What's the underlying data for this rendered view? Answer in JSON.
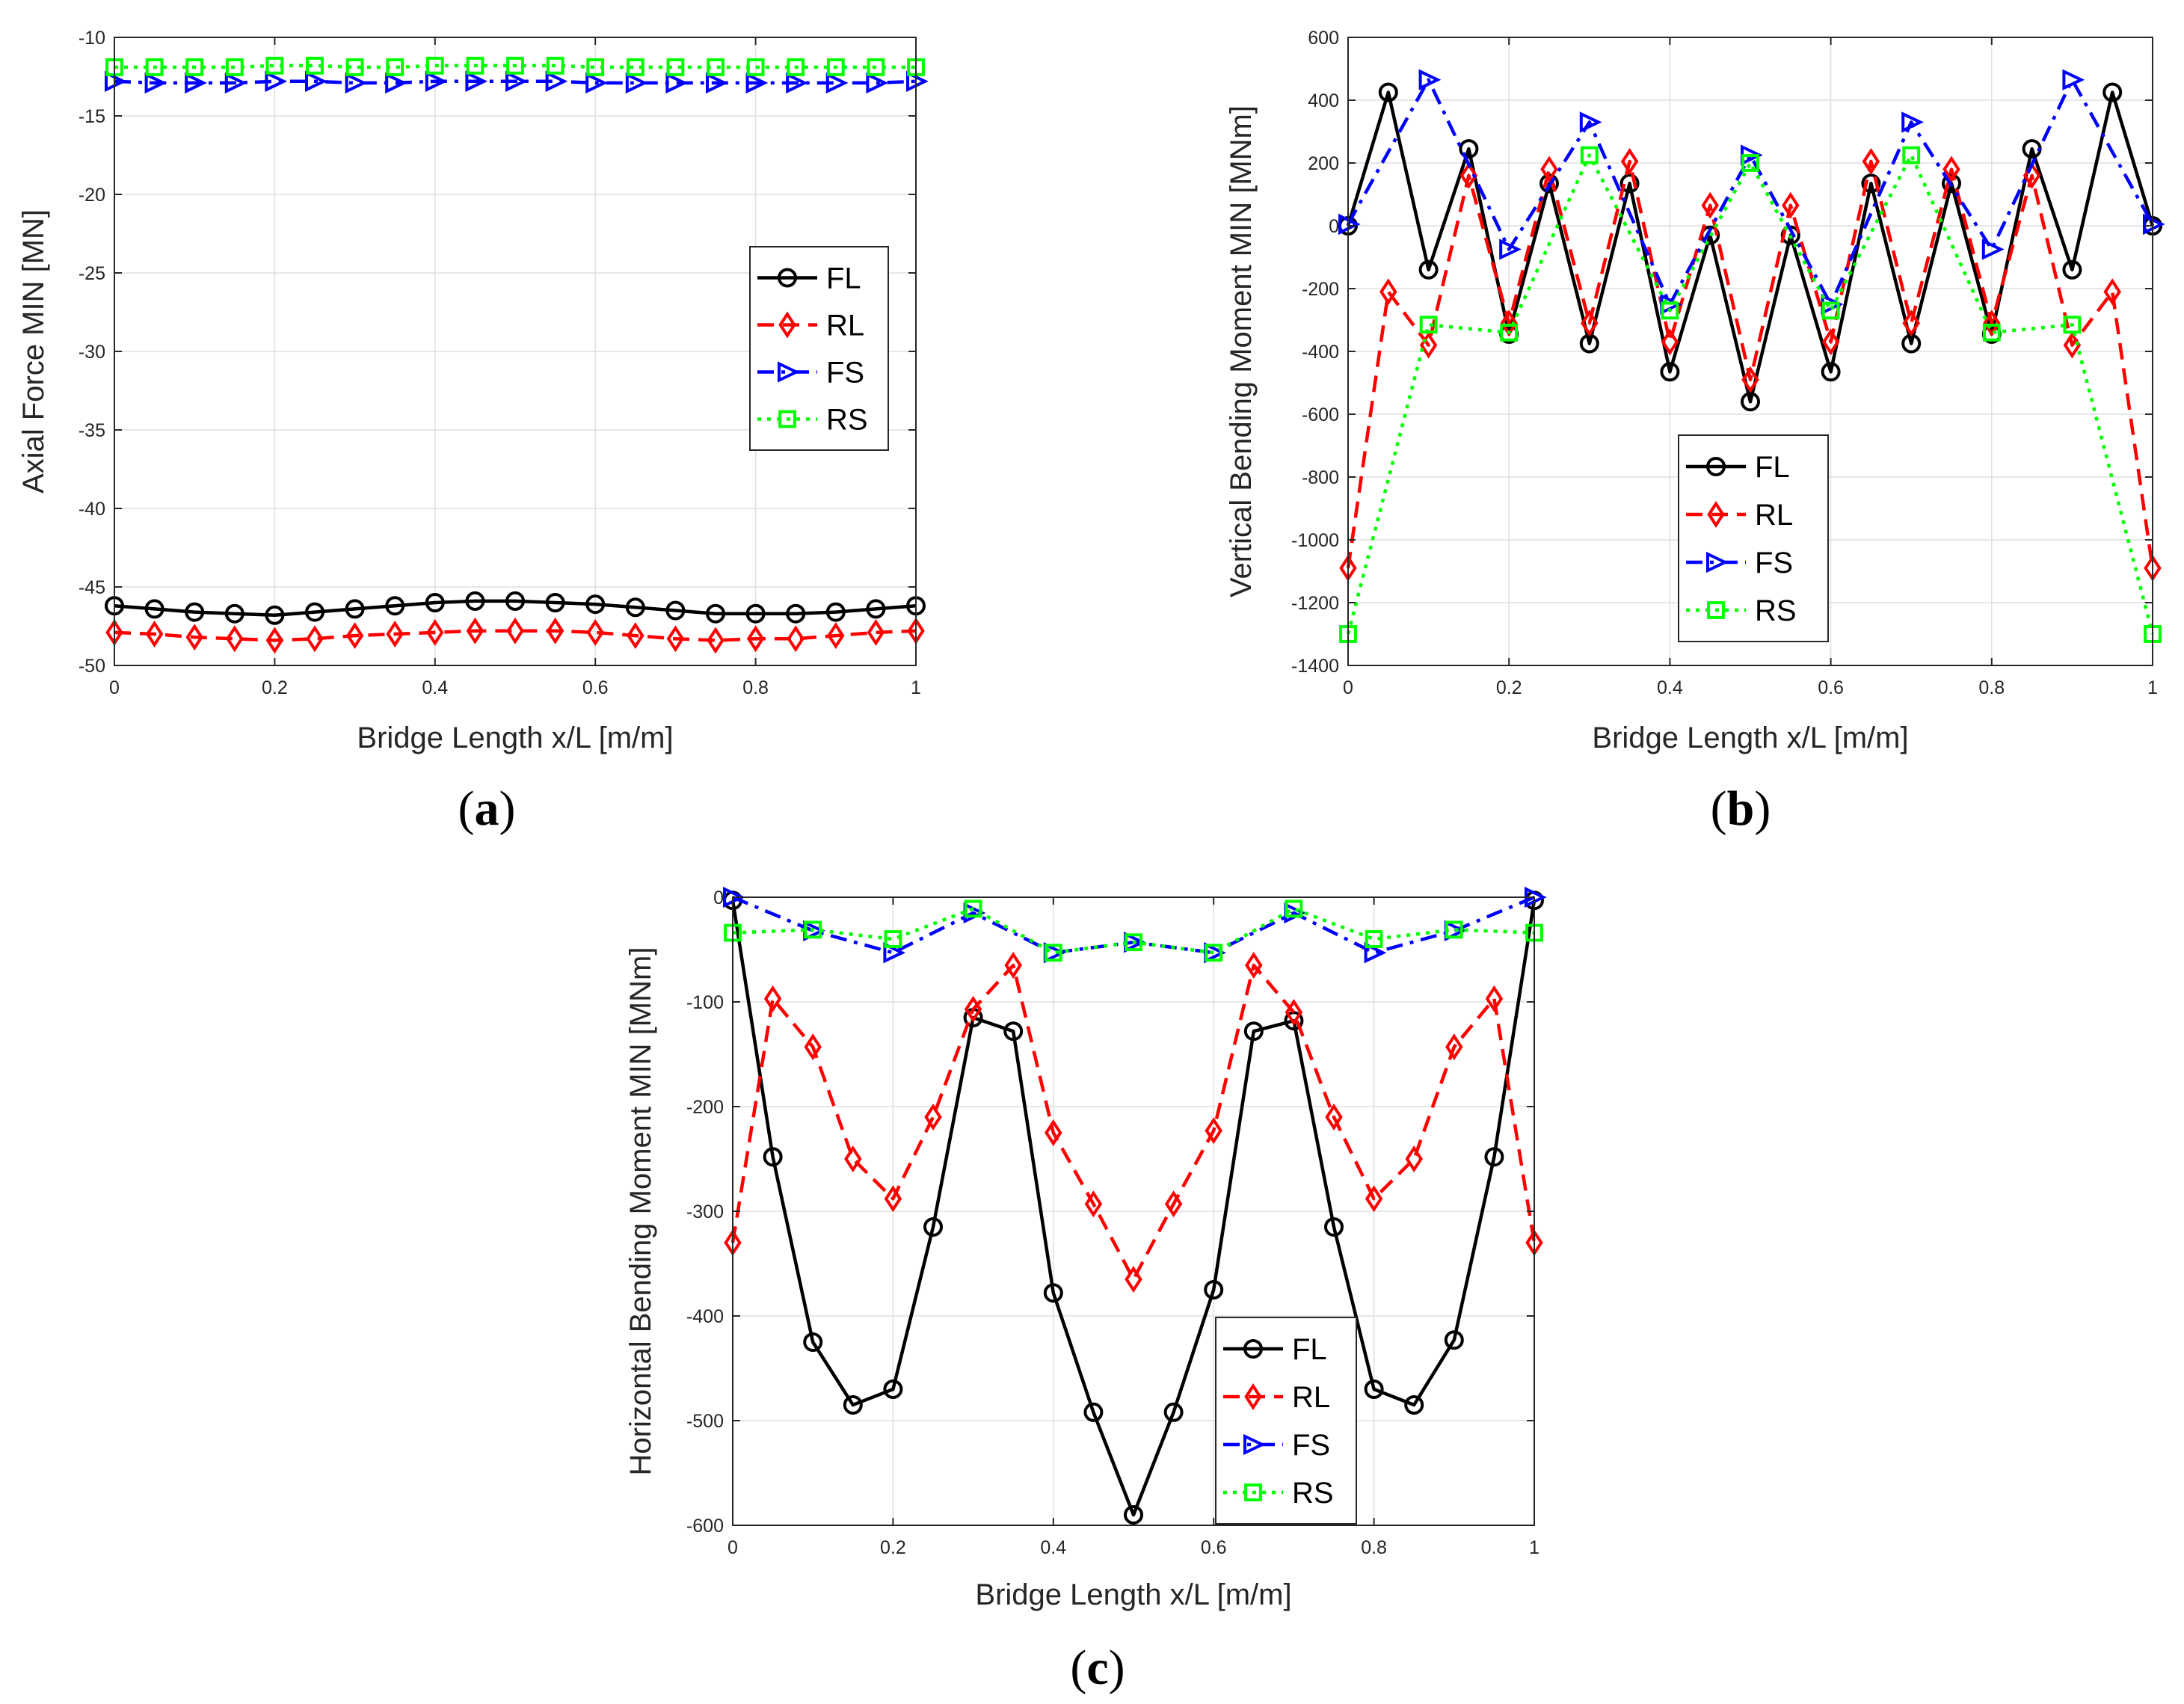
{
  "figure": {
    "background": "#ffffff",
    "grid_color": "#dfdfdf",
    "axis_color": "#262626"
  },
  "chart_data": [
    {
      "id": "a",
      "type": "line",
      "panel_label": "(a)",
      "panel_letter": "a",
      "xlabel": "Bridge Length x/L [m/m]",
      "ylabel": "Axial Force MIN [MN]",
      "xlim": [
        0,
        1
      ],
      "ylim": [
        -50,
        -10
      ],
      "xticks": [
        0,
        0.2,
        0.4,
        0.6,
        0.8,
        1
      ],
      "xtick_labels": [
        "0",
        "0.2",
        "0.4",
        "0.6",
        "0.8",
        "1"
      ],
      "yticks": [
        -50,
        -45,
        -40,
        -35,
        -30,
        -25,
        -20,
        -15,
        -10
      ],
      "ytick_labels": [
        "-50",
        "-45",
        "-40",
        "-35",
        "-30",
        "-25",
        "-20",
        "-15",
        "-10"
      ],
      "grid": true,
      "legend_position": "right-middle",
      "x": [
        0,
        0.05,
        0.1,
        0.15,
        0.2,
        0.25,
        0.3,
        0.35,
        0.4,
        0.45,
        0.5,
        0.55,
        0.6,
        0.65,
        0.7,
        0.75,
        0.8,
        0.85,
        0.9,
        0.95,
        1
      ],
      "series": [
        {
          "name": "FL",
          "color": "#000000",
          "marker": "circle",
          "dash": "solid",
          "values": [
            -46.2,
            -46.4,
            -46.6,
            -46.7,
            -46.8,
            -46.6,
            -46.4,
            -46.2,
            -46.0,
            -45.9,
            -45.9,
            -46.0,
            -46.1,
            -46.3,
            -46.5,
            -46.7,
            -46.7,
            -46.7,
            -46.6,
            -46.4,
            -46.2
          ]
        },
        {
          "name": "RL",
          "color": "#ff0000",
          "marker": "diamond",
          "dash": "dashed",
          "values": [
            -47.9,
            -48.0,
            -48.2,
            -48.3,
            -48.4,
            -48.3,
            -48.1,
            -48.0,
            -47.9,
            -47.8,
            -47.8,
            -47.8,
            -47.9,
            -48.1,
            -48.3,
            -48.4,
            -48.3,
            -48.3,
            -48.1,
            -47.9,
            -47.8
          ]
        },
        {
          "name": "FS",
          "color": "#0000ff",
          "marker": "triangle-right",
          "dash": "dashdot",
          "values": [
            -12.8,
            -12.9,
            -12.9,
            -12.9,
            -12.8,
            -12.8,
            -12.9,
            -12.9,
            -12.8,
            -12.8,
            -12.8,
            -12.8,
            -12.9,
            -12.9,
            -12.9,
            -12.9,
            -12.9,
            -12.9,
            -12.9,
            -12.9,
            -12.8
          ]
        },
        {
          "name": "RS",
          "color": "#00ff00",
          "marker": "square",
          "dash": "dotted",
          "values": [
            -11.9,
            -11.9,
            -11.9,
            -11.9,
            -11.8,
            -11.8,
            -11.9,
            -11.9,
            -11.8,
            -11.8,
            -11.8,
            -11.8,
            -11.9,
            -11.9,
            -11.9,
            -11.9,
            -11.9,
            -11.9,
            -11.9,
            -11.9,
            -11.9
          ]
        }
      ]
    },
    {
      "id": "b",
      "type": "line",
      "panel_label": "(b)",
      "panel_letter": "b",
      "xlabel": "Bridge Length x/L [m/m]",
      "ylabel": "Vertical Bending Moment MIN [MNm]",
      "xlim": [
        0,
        1
      ],
      "ylim": [
        -1400,
        600
      ],
      "xticks": [
        0,
        0.2,
        0.4,
        0.6,
        0.8,
        1
      ],
      "xtick_labels": [
        "0",
        "0.2",
        "0.4",
        "0.6",
        "0.8",
        "1"
      ],
      "yticks": [
        -1400,
        -1200,
        -1000,
        -800,
        -600,
        -400,
        -200,
        0,
        200,
        400,
        600
      ],
      "ytick_labels": [
        "-1400",
        "-1200",
        "-1000",
        "-800",
        "-600",
        "-400",
        "-200",
        "0",
        "200",
        "400",
        "600"
      ],
      "grid": true,
      "legend_position": "bottom-middle",
      "x": [
        0,
        0.05,
        0.1,
        0.15,
        0.2,
        0.25,
        0.3,
        0.35,
        0.4,
        0.45,
        0.5,
        0.55,
        0.6,
        0.65,
        0.7,
        0.75,
        0.8,
        0.85,
        0.9,
        0.95,
        1
      ],
      "series": [
        {
          "name": "FL",
          "color": "#000000",
          "marker": "circle",
          "dash": "solid",
          "values": [
            0,
            425,
            -140,
            245,
            -345,
            135,
            -375,
            135,
            -465,
            -30,
            -560,
            -30,
            -465,
            135,
            -375,
            135,
            -345,
            245,
            -140,
            425,
            0
          ]
        },
        {
          "name": "RL",
          "color": "#ff0000",
          "marker": "diamond",
          "dash": "dashed",
          "values": [
            -1090,
            -210,
            -380,
            160,
            -310,
            180,
            -310,
            205,
            -370,
            65,
            -490,
            65,
            -370,
            205,
            -310,
            180,
            -310,
            160,
            -380,
            -210,
            -1090
          ]
        },
        {
          "name": "FS",
          "color": "#0000ff",
          "marker": "triangle-right",
          "dash": "dashdot",
          "values": [
            5,
            null,
            465,
            null,
            -75,
            null,
            330,
            null,
            -250,
            null,
            225,
            null,
            -250,
            null,
            330,
            null,
            -75,
            null,
            465,
            null,
            5
          ]
        },
        {
          "name": "RS",
          "color": "#00ff00",
          "marker": "square",
          "dash": "dotted",
          "values": [
            -1300,
            null,
            -315,
            null,
            -340,
            null,
            225,
            null,
            -270,
            null,
            200,
            null,
            -270,
            null,
            225,
            null,
            -340,
            null,
            -315,
            null,
            -1300
          ]
        }
      ]
    },
    {
      "id": "c",
      "type": "line",
      "panel_label": "(c)",
      "panel_letter": "c",
      "xlabel": "Bridge Length x/L [m/m]",
      "ylabel": "Horizontal Bending Moment MIN [MNm]",
      "xlim": [
        0,
        1
      ],
      "ylim": [
        -600,
        0
      ],
      "xticks": [
        0,
        0.2,
        0.4,
        0.6,
        0.8,
        1
      ],
      "xtick_labels": [
        "0",
        "0.2",
        "0.4",
        "0.6",
        "0.8",
        "1"
      ],
      "yticks": [
        -600,
        -500,
        -400,
        -300,
        -200,
        -100,
        0
      ],
      "ytick_labels": [
        "-600",
        "-500",
        "-400",
        "-300",
        "-200",
        "-100",
        "0"
      ],
      "grid": true,
      "legend_position": "bottom-right",
      "x": [
        0,
        0.05,
        0.1,
        0.15,
        0.2,
        0.25,
        0.3,
        0.35,
        0.4,
        0.45,
        0.5,
        0.55,
        0.6,
        0.65,
        0.7,
        0.75,
        0.8,
        0.85,
        0.9,
        0.95,
        1
      ],
      "series": [
        {
          "name": "FL",
          "color": "#000000",
          "marker": "circle",
          "dash": "solid",
          "values": [
            -3,
            -248,
            -425,
            -485,
            -470,
            -315,
            -115,
            -128,
            -378,
            -492,
            -590,
            -492,
            -375,
            -128,
            -118,
            -315,
            -470,
            -485,
            -423,
            -248,
            -3
          ]
        },
        {
          "name": "RL",
          "color": "#ff0000",
          "marker": "diamond",
          "dash": "dashed",
          "values": [
            -330,
            -97,
            -143,
            -250,
            -288,
            -210,
            -107,
            -65,
            -225,
            -293,
            -365,
            -293,
            -223,
            -65,
            -110,
            -210,
            -288,
            -250,
            -143,
            -97,
            -330
          ]
        },
        {
          "name": "FS",
          "color": "#0000ff",
          "marker": "triangle-right",
          "dash": "dashdot",
          "values": [
            0,
            null,
            -32,
            null,
            -53,
            null,
            -15,
            null,
            -53,
            null,
            -43,
            null,
            -53,
            null,
            -15,
            null,
            -53,
            null,
            -32,
            null,
            0
          ]
        },
        {
          "name": "RS",
          "color": "#00ff00",
          "marker": "square",
          "dash": "dotted",
          "values": [
            -34,
            null,
            -31,
            null,
            -40,
            null,
            -11,
            null,
            -53,
            null,
            -43,
            null,
            -53,
            null,
            -11,
            null,
            -40,
            null,
            -31,
            null,
            -34
          ]
        }
      ]
    }
  ]
}
